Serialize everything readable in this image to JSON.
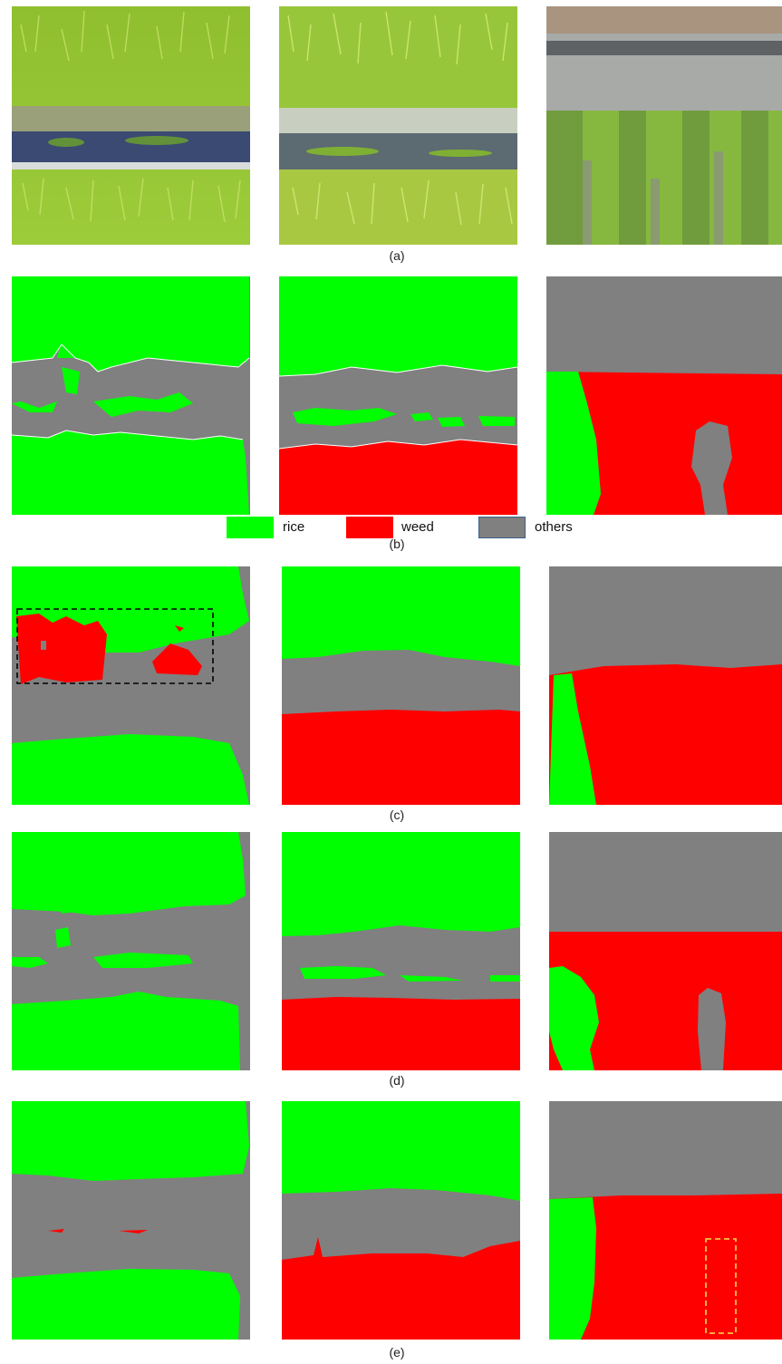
{
  "figure": {
    "captions": {
      "a": "(a)",
      "b": "(b)",
      "c": "(c)",
      "d": "(d)",
      "e": "(e)"
    },
    "legend": [
      {
        "label": "rice",
        "color": "#00ff00"
      },
      {
        "label": "weed",
        "color": "#ff0000"
      },
      {
        "label": "others",
        "color": "#808080"
      }
    ],
    "colors": {
      "rice": "#00ff00",
      "weed": "#ff0000",
      "others": "#808080",
      "highlight_box_black": "#000000",
      "highlight_box_yellow": "#f5c242"
    }
  }
}
